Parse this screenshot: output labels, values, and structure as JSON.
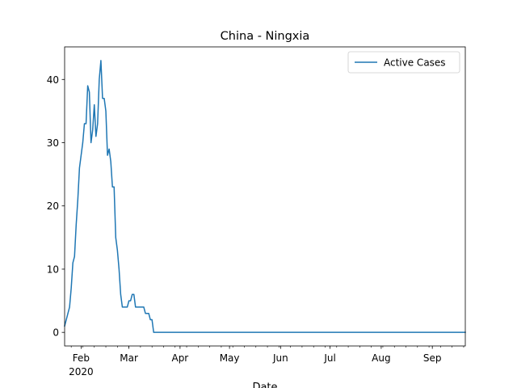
{
  "chart_data": {
    "type": "line",
    "title": "China - Ningxia",
    "xlabel": "Date",
    "ylabel": "",
    "x_range": [
      "2020-01-22",
      "2020-09-21"
    ],
    "ylim": [
      -2.15,
      45.15
    ],
    "y_ticks": [
      0,
      10,
      20,
      30,
      40
    ],
    "x_ticks": [
      {
        "date": "2020-02-01",
        "label": "Feb",
        "sublabel": "2020"
      },
      {
        "date": "2020-03-01",
        "label": "Mar",
        "sublabel": ""
      },
      {
        "date": "2020-04-01",
        "label": "Apr",
        "sublabel": ""
      },
      {
        "date": "2020-05-01",
        "label": "May",
        "sublabel": ""
      },
      {
        "date": "2020-06-01",
        "label": "Jun",
        "sublabel": ""
      },
      {
        "date": "2020-07-01",
        "label": "Jul",
        "sublabel": ""
      },
      {
        "date": "2020-08-01",
        "label": "Aug",
        "sublabel": ""
      },
      {
        "date": "2020-09-01",
        "label": "Sep",
        "sublabel": ""
      }
    ],
    "grid": false,
    "legend": {
      "position": "top-right"
    },
    "series": [
      {
        "name": "Active Cases",
        "color": "#1f77b4",
        "points": [
          [
            "2020-01-22",
            1
          ],
          [
            "2020-01-23",
            2
          ],
          [
            "2020-01-24",
            3
          ],
          [
            "2020-01-25",
            4
          ],
          [
            "2020-01-26",
            7
          ],
          [
            "2020-01-27",
            11
          ],
          [
            "2020-01-28",
            12
          ],
          [
            "2020-01-29",
            17
          ],
          [
            "2020-01-30",
            21
          ],
          [
            "2020-01-31",
            26
          ],
          [
            "2020-02-01",
            28
          ],
          [
            "2020-02-02",
            30
          ],
          [
            "2020-02-03",
            33
          ],
          [
            "2020-02-04",
            33
          ],
          [
            "2020-02-05",
            39
          ],
          [
            "2020-02-06",
            38
          ],
          [
            "2020-02-07",
            30
          ],
          [
            "2020-02-08",
            32
          ],
          [
            "2020-02-09",
            36
          ],
          [
            "2020-02-10",
            31
          ],
          [
            "2020-02-11",
            33
          ],
          [
            "2020-02-12",
            40
          ],
          [
            "2020-02-13",
            43
          ],
          [
            "2020-02-14",
            37
          ],
          [
            "2020-02-15",
            37
          ],
          [
            "2020-02-16",
            35
          ],
          [
            "2020-02-17",
            28
          ],
          [
            "2020-02-18",
            29
          ],
          [
            "2020-02-19",
            27
          ],
          [
            "2020-02-20",
            23
          ],
          [
            "2020-02-21",
            23
          ],
          [
            "2020-02-22",
            15
          ],
          [
            "2020-02-23",
            13
          ],
          [
            "2020-02-24",
            10
          ],
          [
            "2020-02-25",
            6
          ],
          [
            "2020-02-26",
            4
          ],
          [
            "2020-02-27",
            4
          ],
          [
            "2020-02-28",
            4
          ],
          [
            "2020-02-29",
            4
          ],
          [
            "2020-03-01",
            5
          ],
          [
            "2020-03-02",
            5
          ],
          [
            "2020-03-03",
            6
          ],
          [
            "2020-03-04",
            6
          ],
          [
            "2020-03-05",
            4
          ],
          [
            "2020-03-06",
            4
          ],
          [
            "2020-03-07",
            4
          ],
          [
            "2020-03-08",
            4
          ],
          [
            "2020-03-09",
            4
          ],
          [
            "2020-03-10",
            4
          ],
          [
            "2020-03-11",
            3
          ],
          [
            "2020-03-12",
            3
          ],
          [
            "2020-03-13",
            3
          ],
          [
            "2020-03-14",
            2
          ],
          [
            "2020-03-15",
            2
          ],
          [
            "2020-03-16",
            0
          ],
          [
            "2020-09-21",
            0
          ]
        ]
      }
    ]
  }
}
